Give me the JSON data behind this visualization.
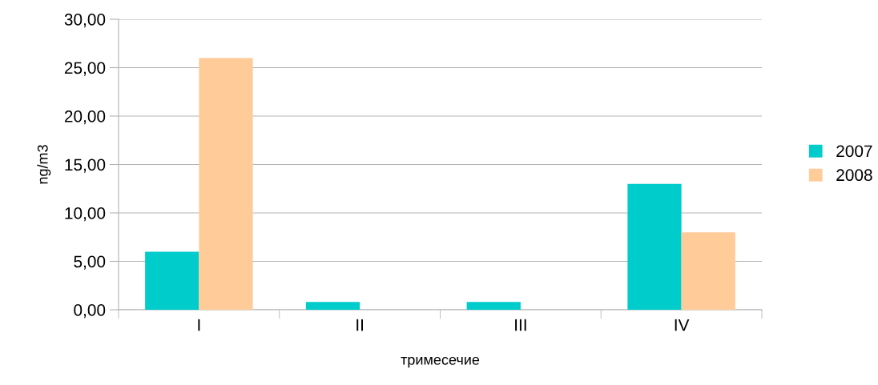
{
  "chart_data": {
    "type": "bar",
    "xlabel": "тримесечие",
    "ylabel": "ng/m3",
    "categories": [
      "I",
      "II",
      "III",
      "IV"
    ],
    "series": [
      {
        "name": "2007",
        "color": "#00cccc",
        "values": [
          6.0,
          0.8,
          0.8,
          13.0
        ]
      },
      {
        "name": "2008",
        "color": "#ffcc99",
        "values": [
          26.0,
          0,
          0,
          8.0
        ]
      }
    ],
    "ylim": [
      0,
      30
    ],
    "yticks": [
      {
        "value": 0,
        "label": "0,00"
      },
      {
        "value": 5,
        "label": "5,00"
      },
      {
        "value": 10,
        "label": "10,00"
      },
      {
        "value": 15,
        "label": "15,00"
      },
      {
        "value": 20,
        "label": "20,00"
      },
      {
        "value": 25,
        "label": "25,00"
      },
      {
        "value": 30,
        "label": "30,00"
      }
    ],
    "grid": "y",
    "legend": "right"
  }
}
